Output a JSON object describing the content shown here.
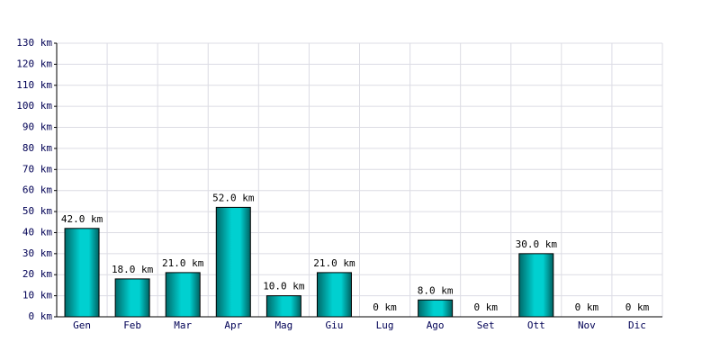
{
  "chart_data": {
    "type": "bar",
    "categories": [
      "Gen",
      "Feb",
      "Mar",
      "Apr",
      "Mag",
      "Giu",
      "Lug",
      "Ago",
      "Set",
      "Ott",
      "Nov",
      "Dic"
    ],
    "values": [
      42,
      18,
      21,
      52,
      10,
      21,
      0,
      8,
      0,
      30,
      0,
      0
    ],
    "value_labels": [
      "42.0 km",
      "18.0 km",
      "21.0 km",
      "52.0 km",
      "10.0 km",
      "21.0 km",
      "0 km",
      "8.0 km",
      "0 km",
      "30.0 km",
      "0 km",
      "0 km"
    ],
    "color": "#00d0d0",
    "ylim": [
      0,
      130
    ],
    "yticks": [
      {
        "value": 0,
        "label": "0 km"
      },
      {
        "value": 10,
        "label": "10 km"
      },
      {
        "value": 20,
        "label": "20 km"
      },
      {
        "value": 30,
        "label": "30 km"
      },
      {
        "value": 40,
        "label": "40 km"
      },
      {
        "value": 50,
        "label": "50 km"
      },
      {
        "value": 60,
        "label": "60 km"
      },
      {
        "value": 70,
        "label": "70 km"
      },
      {
        "value": 80,
        "label": "80 km"
      },
      {
        "value": 90,
        "label": "90 km"
      },
      {
        "value": 100,
        "label": "100 km"
      },
      {
        "value": 110,
        "label": "110 km"
      },
      {
        "value": 120,
        "label": "120 km"
      },
      {
        "value": 130,
        "label": "130 km"
      }
    ],
    "grid": true
  }
}
